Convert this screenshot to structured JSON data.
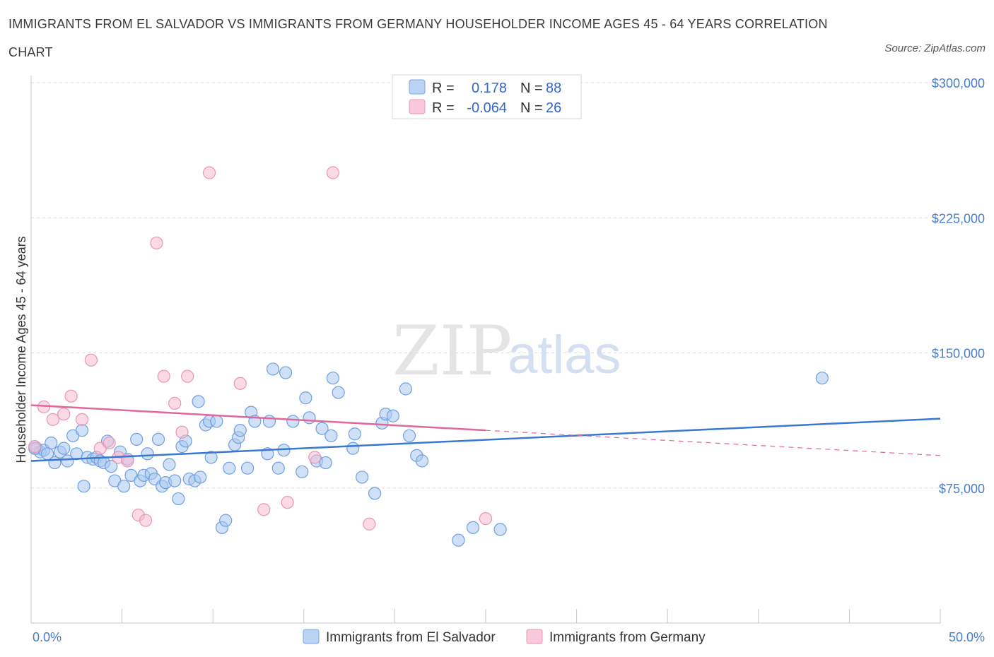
{
  "title_line1": "IMMIGRANTS FROM EL SALVADOR VS IMMIGRANTS FROM GERMANY HOUSEHOLDER INCOME AGES 45 - 64 YEARS CORRELATION",
  "title_line2": "CHART",
  "source": "Source: ZipAtlas.com",
  "watermark": {
    "zip": "ZIP",
    "atlas": "atlas"
  },
  "colors": {
    "blue": "#3a78d0",
    "pink": "#e0679a",
    "blue_fill": "#aac8f0",
    "pink_fill": "#f7bcd2",
    "tick_text": "#4a7cc8",
    "grid": "#dedede"
  },
  "legend": {
    "rows": [
      {
        "r_label": "R =",
        "r_value": "0.178",
        "n_label": "N =",
        "n_value": "88"
      },
      {
        "r_label": "R =",
        "r_value": "-0.064",
        "n_label": "N =",
        "n_value": "26"
      }
    ]
  },
  "chart_data": {
    "type": "scatter",
    "title": "IMMIGRANTS FROM EL SALVADOR VS IMMIGRANTS FROM GERMANY HOUSEHOLDER INCOME AGES 45 - 64 YEARS CORRELATION CHART",
    "xlabel": "",
    "ylabel": "Householder Income Ages 45 - 64 years",
    "xlim": [
      0,
      50
    ],
    "ylim": [
      0,
      300000
    ],
    "x_tick_labels": [
      "0.0%",
      "50.0%"
    ],
    "y_ticks": [
      75000,
      150000,
      225000,
      300000
    ],
    "y_tick_labels": [
      "$75,000",
      "$150,000",
      "$225,000",
      "$300,000"
    ],
    "grid": true,
    "legend_position": "top-center",
    "series": [
      {
        "name": "Immigrants from El Salvador",
        "color": "#3a78d0",
        "R": 0.178,
        "N": 88,
        "trend": {
          "x": [
            0,
            50
          ],
          "y": [
            90000,
            113500
          ]
        },
        "points": [
          [
            0.3,
            97000
          ],
          [
            0.5,
            95000
          ],
          [
            0.7,
            96000
          ],
          [
            0.9,
            94000
          ],
          [
            1.1,
            100000
          ],
          [
            1.3,
            89000
          ],
          [
            1.6,
            95000
          ],
          [
            1.8,
            97000
          ],
          [
            2.0,
            90000
          ],
          [
            2.3,
            104000
          ],
          [
            2.5,
            94000
          ],
          [
            2.8,
            107000
          ],
          [
            2.9,
            76000
          ],
          [
            3.1,
            92000
          ],
          [
            3.4,
            91000
          ],
          [
            3.6,
            92000
          ],
          [
            3.8,
            90000
          ],
          [
            4.0,
            89000
          ],
          [
            4.2,
            101000
          ],
          [
            4.4,
            87000
          ],
          [
            4.6,
            79000
          ],
          [
            4.9,
            95000
          ],
          [
            5.1,
            76000
          ],
          [
            5.3,
            91000
          ],
          [
            5.5,
            82000
          ],
          [
            5.8,
            102000
          ],
          [
            6.0,
            79000
          ],
          [
            6.2,
            82000
          ],
          [
            6.4,
            94000
          ],
          [
            6.6,
            83000
          ],
          [
            6.8,
            80000
          ],
          [
            7.0,
            102000
          ],
          [
            7.2,
            76000
          ],
          [
            7.4,
            78000
          ],
          [
            7.6,
            88000
          ],
          [
            7.9,
            79000
          ],
          [
            8.1,
            69000
          ],
          [
            8.3,
            98000
          ],
          [
            8.5,
            101000
          ],
          [
            8.7,
            80000
          ],
          [
            9.0,
            79000
          ],
          [
            9.2,
            123000
          ],
          [
            9.3,
            81000
          ],
          [
            9.6,
            110000
          ],
          [
            9.8,
            112000
          ],
          [
            9.9,
            92000
          ],
          [
            10.2,
            112000
          ],
          [
            10.5,
            53000
          ],
          [
            10.7,
            57000
          ],
          [
            10.9,
            86000
          ],
          [
            11.2,
            99000
          ],
          [
            11.4,
            103000
          ],
          [
            11.5,
            107000
          ],
          [
            11.9,
            86000
          ],
          [
            12.1,
            117000
          ],
          [
            12.3,
            112000
          ],
          [
            13.0,
            94000
          ],
          [
            13.1,
            112000
          ],
          [
            13.3,
            141000
          ],
          [
            13.6,
            86000
          ],
          [
            13.9,
            96000
          ],
          [
            14.0,
            139000
          ],
          [
            14.4,
            112000
          ],
          [
            14.9,
            84000
          ],
          [
            15.1,
            125000
          ],
          [
            15.3,
            114000
          ],
          [
            15.7,
            90000
          ],
          [
            16.0,
            108000
          ],
          [
            16.2,
            89000
          ],
          [
            16.5,
            104000
          ],
          [
            16.6,
            136000
          ],
          [
            16.9,
            128000
          ],
          [
            17.7,
            97000
          ],
          [
            17.8,
            105000
          ],
          [
            18.2,
            81000
          ],
          [
            18.9,
            72000
          ],
          [
            19.3,
            111000
          ],
          [
            19.5,
            116000
          ],
          [
            19.9,
            115000
          ],
          [
            20.6,
            130000
          ],
          [
            20.8,
            104000
          ],
          [
            21.2,
            93000
          ],
          [
            21.5,
            90000
          ],
          [
            23.5,
            46000
          ],
          [
            24.3,
            53000
          ],
          [
            25.8,
            52000
          ],
          [
            43.5,
            136000
          ],
          [
            0.2,
            97000
          ]
        ]
      },
      {
        "name": "Immigrants from Germany",
        "color": "#e0679a",
        "R": -0.064,
        "N": 26,
        "trend": {
          "x": [
            0,
            25
          ],
          "y": [
            121000,
            107000
          ]
        },
        "trend_extension": {
          "x": [
            25,
            50
          ],
          "y": [
            107000,
            93000
          ]
        },
        "points": [
          [
            0.2,
            98000
          ],
          [
            0.7,
            120000
          ],
          [
            1.2,
            113000
          ],
          [
            1.8,
            116000
          ],
          [
            2.2,
            126000
          ],
          [
            2.8,
            113000
          ],
          [
            3.3,
            146000
          ],
          [
            3.8,
            97000
          ],
          [
            4.3,
            100000
          ],
          [
            4.8,
            92000
          ],
          [
            5.3,
            90000
          ],
          [
            5.9,
            60000
          ],
          [
            6.3,
            57000
          ],
          [
            6.9,
            211000
          ],
          [
            7.3,
            137000
          ],
          [
            7.9,
            122000
          ],
          [
            8.3,
            106000
          ],
          [
            8.6,
            137000
          ],
          [
            9.8,
            250000
          ],
          [
            11.5,
            133000
          ],
          [
            12.8,
            63000
          ],
          [
            14.1,
            67000
          ],
          [
            15.6,
            92000
          ],
          [
            16.6,
            250000
          ],
          [
            18.6,
            55000
          ],
          [
            25.0,
            58000
          ]
        ]
      }
    ]
  }
}
